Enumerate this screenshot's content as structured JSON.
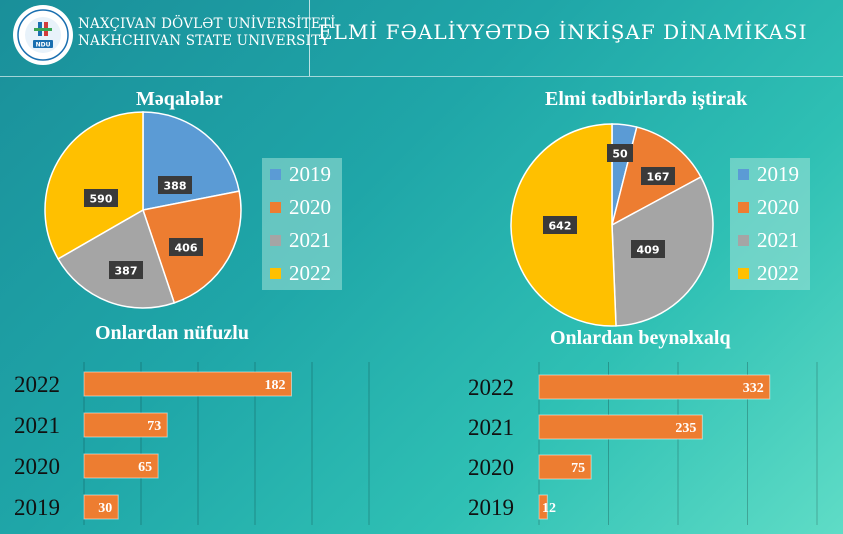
{
  "header": {
    "university_az": "NAXÇIVAN DÖVLƏT UNİVERSİTETİ",
    "university_en": "NAKHCHIVAN STATE UNIVERSITY",
    "logo_text": "NDU",
    "page_title": "ELMİ FƏALİYYƏTDƏ İNKİŞAF DİNAMİKASI"
  },
  "colors": {
    "2019": "#5b9bd5",
    "2020": "#ed7d31",
    "2021": "#a5a5a5",
    "2022": "#ffc000",
    "bar": "#ed7d31"
  },
  "legend": [
    "2019",
    "2020",
    "2021",
    "2022"
  ],
  "chart_data": [
    {
      "type": "pie",
      "title": "Məqalələr",
      "categories": [
        "2019",
        "2020",
        "2021",
        "2022"
      ],
      "values": [
        388,
        406,
        387,
        590
      ],
      "legend_position": "right"
    },
    {
      "type": "pie",
      "title": "Elmi tədbirlərdə iştirak",
      "categories": [
        "2019",
        "2020",
        "2021",
        "2022"
      ],
      "values": [
        50,
        167,
        409,
        642
      ],
      "legend_position": "right"
    },
    {
      "type": "bar",
      "orientation": "horizontal",
      "title": "Onlardan nüfuzlu",
      "categories": [
        "2022",
        "2021",
        "2020",
        "2019"
      ],
      "values": [
        182,
        73,
        65,
        30
      ],
      "xlim": [
        0,
        250
      ]
    },
    {
      "type": "bar",
      "orientation": "horizontal",
      "title": "Onlardan beynəlxalq",
      "categories": [
        "2022",
        "2021",
        "2020",
        "2019"
      ],
      "values": [
        332,
        235,
        75,
        12
      ],
      "xlim": [
        0,
        400
      ]
    }
  ]
}
